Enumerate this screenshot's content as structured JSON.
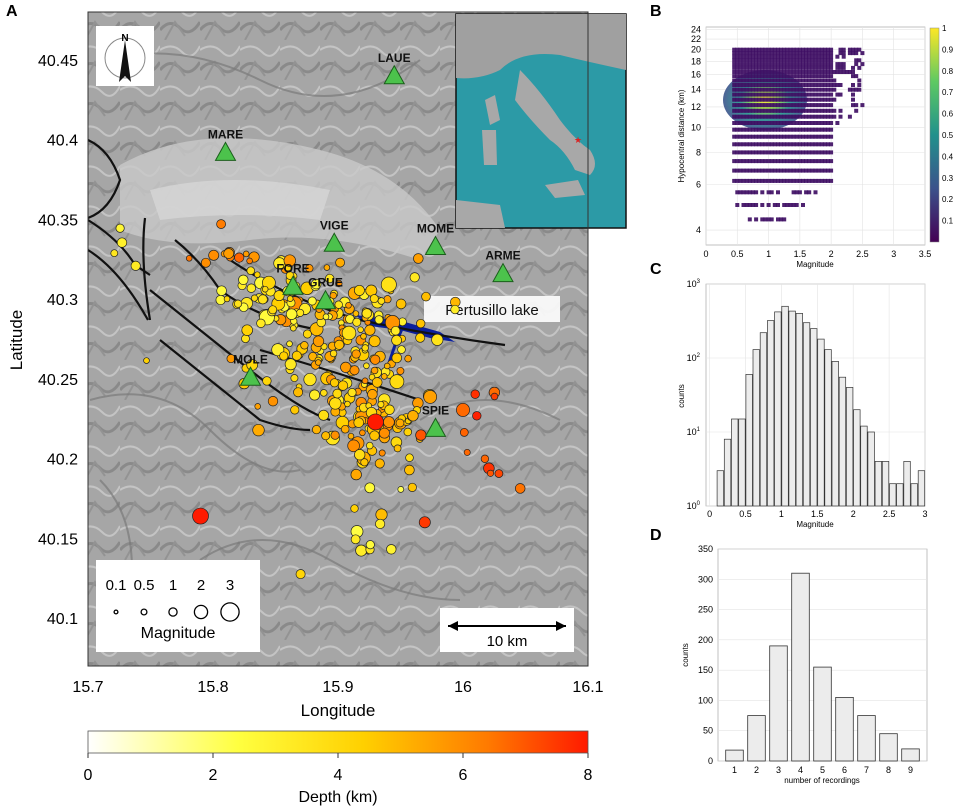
{
  "panels": {
    "a": "A",
    "b": "B",
    "c": "C",
    "d": "D"
  },
  "compass_letter": "N",
  "lake_label": "Pertusillo lake",
  "scalebar_label": "10 km",
  "colors": {
    "station": "#4cc24c",
    "fault": "#111111",
    "lake": "#0a1f9c",
    "map_bg": "#a9a9a9",
    "bar_fill": "#ececec"
  },
  "chart_data": [
    {
      "id": "map",
      "type": "scatter",
      "xlabel": "Longitude",
      "ylabel": "Latitude",
      "xlim": [
        15.7,
        16.1
      ],
      "ylim": [
        40.07,
        40.48
      ],
      "xticks": [
        "15.7",
        "15.8",
        "15.9",
        "16",
        "16.1"
      ],
      "yticks": [
        "40.1",
        "40.15",
        "40.2",
        "40.25",
        "40.3",
        "40.35",
        "40.4",
        "40.45"
      ],
      "stations": [
        {
          "name": "LAUE",
          "lon": 15.945,
          "lat": 40.44
        },
        {
          "name": "MARE",
          "lon": 15.81,
          "lat": 40.392
        },
        {
          "name": "VIGE",
          "lon": 15.897,
          "lat": 40.335
        },
        {
          "name": "MOME",
          "lon": 15.978,
          "lat": 40.333
        },
        {
          "name": "ARME",
          "lon": 16.032,
          "lat": 40.316
        },
        {
          "name": "FORE",
          "lon": 15.864,
          "lat": 40.308
        },
        {
          "name": "GRUE",
          "lon": 15.89,
          "lat": 40.299
        },
        {
          "name": "MOLE",
          "lon": 15.83,
          "lat": 40.251
        },
        {
          "name": "SPIE",
          "lon": 15.978,
          "lat": 40.219
        }
      ],
      "magnitude_legend": {
        "title": "Magnitude",
        "values": [
          "0.1",
          "0.5",
          "1",
          "2",
          "3"
        ]
      },
      "colorbar": {
        "label": "Depth (km)",
        "ticks": [
          "0",
          "2",
          "4",
          "6",
          "8"
        ],
        "range": [
          0,
          8
        ]
      }
    },
    {
      "id": "density",
      "type": "heatmap",
      "xlabel": "Magnitude",
      "ylabel": "Hypocentral distance (km)",
      "xticks": [
        "0",
        "0.5",
        "1",
        "1.5",
        "2",
        "2.5",
        "3",
        "3.5"
      ],
      "yticks": [
        "4",
        "6",
        "8",
        "10",
        "12",
        "14",
        "16",
        "18",
        "20",
        "22",
        "24"
      ],
      "colorbar_ticks": [
        "0.1",
        "0.2",
        "0.3",
        "0.4",
        "0.5",
        "0.6",
        "0.7",
        "0.8",
        "0.9",
        "1"
      ]
    },
    {
      "id": "hist_mag",
      "type": "bar",
      "xlabel": "Magnitude",
      "ylabel": "counts",
      "yscale": "log",
      "xticks": [
        "0",
        "0.5",
        "1",
        "1.5",
        "2",
        "2.5",
        "3"
      ],
      "bins_center": [
        0.15,
        0.25,
        0.35,
        0.45,
        0.55,
        0.65,
        0.75,
        0.85,
        0.95,
        1.05,
        1.15,
        1.25,
        1.35,
        1.45,
        1.55,
        1.65,
        1.75,
        1.85,
        1.95,
        2.05,
        2.15,
        2.25,
        2.35,
        2.45,
        2.55,
        2.65,
        2.75,
        2.85,
        2.95
      ],
      "values": [
        3,
        8,
        15,
        15,
        60,
        130,
        220,
        320,
        420,
        500,
        430,
        400,
        300,
        250,
        180,
        130,
        90,
        55,
        40,
        20,
        12,
        10,
        4,
        4,
        2,
        2,
        4,
        2,
        3
      ]
    },
    {
      "id": "hist_rec",
      "type": "bar",
      "xlabel": "number of recordings",
      "ylabel": "counts",
      "ylim": [
        0,
        350
      ],
      "categories": [
        "1",
        "2",
        "3",
        "4",
        "5",
        "6",
        "7",
        "8",
        "9"
      ],
      "values": [
        18,
        75,
        190,
        310,
        155,
        105,
        75,
        45,
        20
      ],
      "yticks": [
        "0",
        "50",
        "100",
        "150",
        "200",
        "250",
        "300",
        "350"
      ]
    }
  ]
}
